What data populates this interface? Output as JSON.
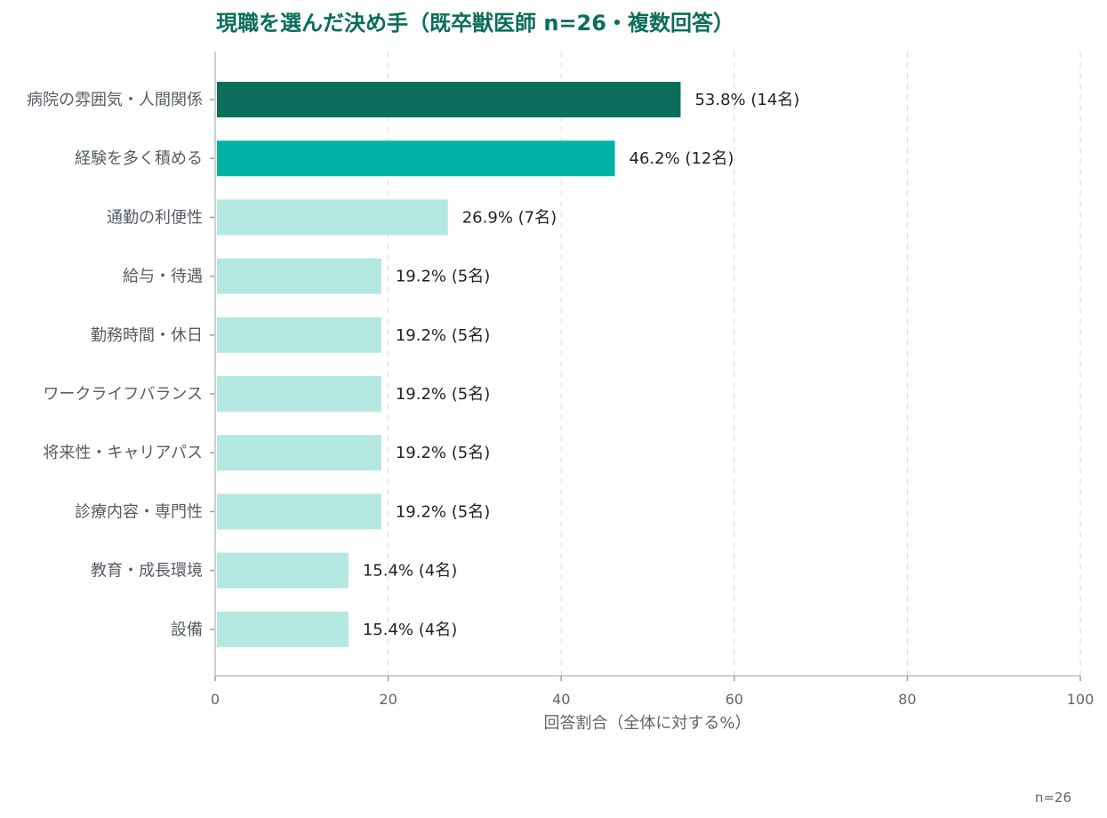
{
  "chart_data": {
    "type": "bar",
    "orientation": "horizontal",
    "title": "現職を選んだ決め手（既卒獣医師 n=26・複数回答）",
    "xlabel": "回答割合（全体に対する%）",
    "ylabel": "",
    "xlim": [
      0,
      100
    ],
    "x_ticks": [
      0,
      20,
      40,
      60,
      80,
      100
    ],
    "grid": true,
    "footnote": "n=26",
    "categories": [
      "病院の雰囲気・人間関係",
      "経験を多く積める",
      "通勤の利便性",
      "給与・待遇",
      "勤務時間・休日",
      "ワークライフバランス",
      "将来性・キャリアパス",
      "診療内容・専門性",
      "教育・成長環境",
      "設備"
    ],
    "values": [
      53.8,
      46.2,
      26.9,
      19.2,
      19.2,
      19.2,
      19.2,
      19.2,
      15.4,
      15.4
    ],
    "counts": [
      14,
      12,
      7,
      5,
      5,
      5,
      5,
      5,
      4,
      4
    ],
    "value_labels": [
      "53.8% (14名)",
      "46.2% (12名)",
      "26.9% (7名)",
      "19.2% (5名)",
      "19.2% (5名)",
      "19.2% (5名)",
      "19.2% (5名)",
      "19.2% (5名)",
      "15.4% (4名)",
      "15.4% (4名)"
    ],
    "colors": [
      "#0b6e5a",
      "#00b3a4",
      "#b3e8e0",
      "#b3e8e0",
      "#b3e8e0",
      "#b3e8e0",
      "#b3e8e0",
      "#b3e8e0",
      "#b3e8e0",
      "#b3e8e0"
    ]
  }
}
